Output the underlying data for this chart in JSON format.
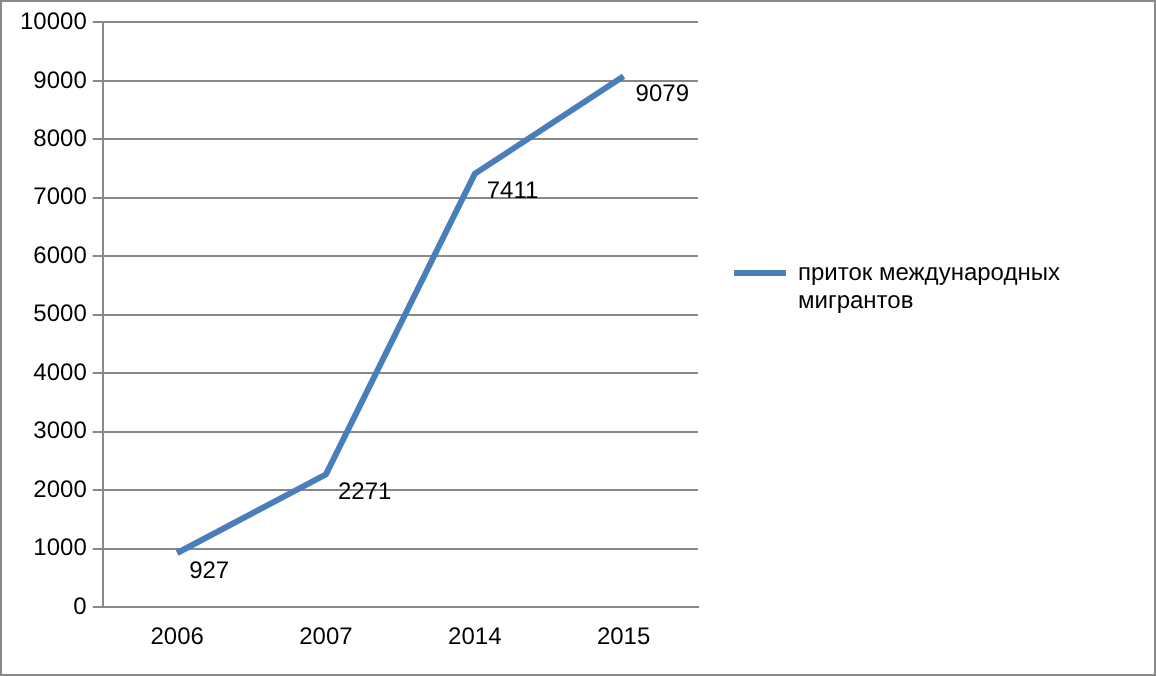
{
  "chart_data": {
    "type": "line",
    "categories": [
      "2006",
      "2007",
      "2014",
      "2015"
    ],
    "series": [
      {
        "name": "приток международных мигрантов",
        "color": "#4a7ebb",
        "values": [
          927,
          2271,
          7411,
          9079
        ]
      }
    ],
    "ylim": [
      0,
      10000
    ],
    "yticks": [
      0,
      1000,
      2000,
      3000,
      4000,
      5000,
      6000,
      7000,
      8000,
      9000,
      10000
    ],
    "grid": "y",
    "legend": "right",
    "data_labels": true,
    "marker": "none",
    "line_style": "solid"
  }
}
